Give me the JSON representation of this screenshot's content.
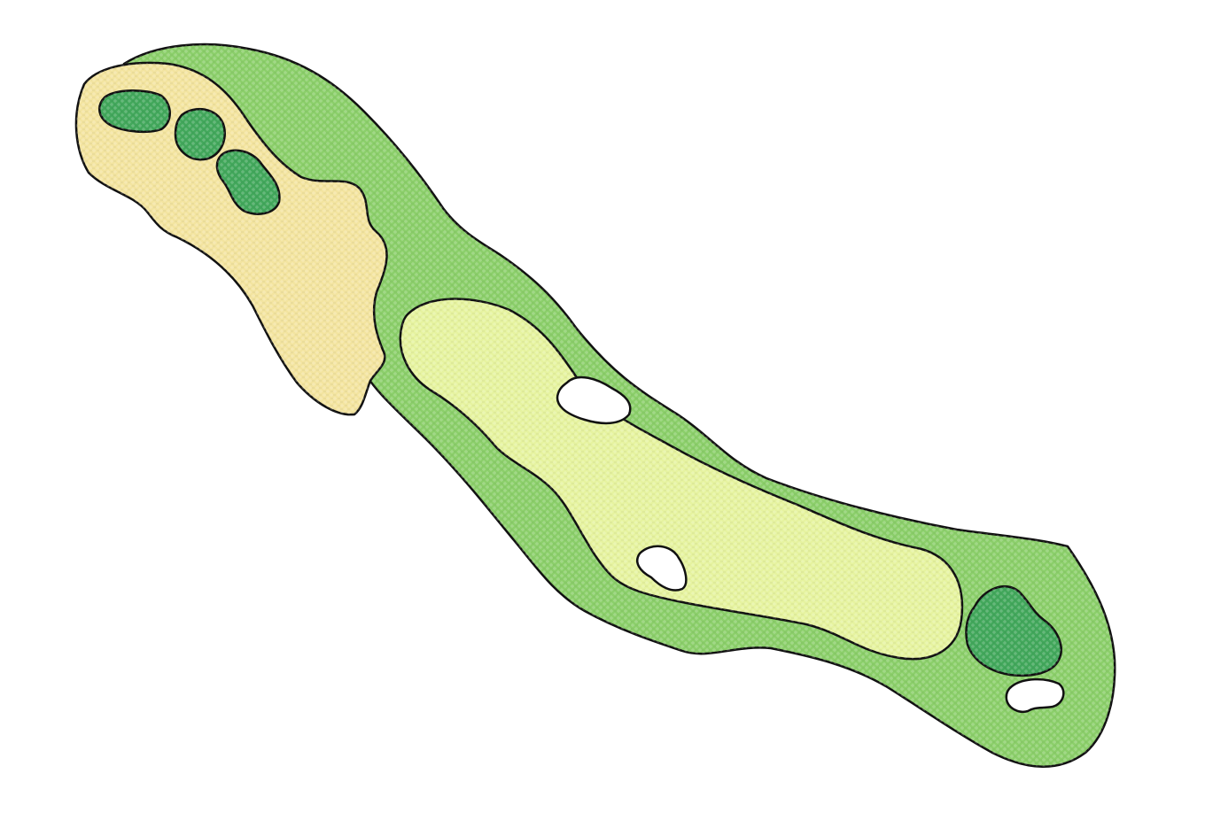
{
  "map": {
    "background": "#ffffff",
    "colors": {
      "rough": "#8ccf6b",
      "fairway": "#e6f3a0",
      "tee_area": "#f3e4a0",
      "tee_box": "#43a85c",
      "green": "#43a85c",
      "bunker": "#ffffff",
      "outline": "#111111"
    },
    "features": {
      "tee_boxes": 3,
      "fairways": 1,
      "greens": 1,
      "bunkers": 3
    }
  }
}
